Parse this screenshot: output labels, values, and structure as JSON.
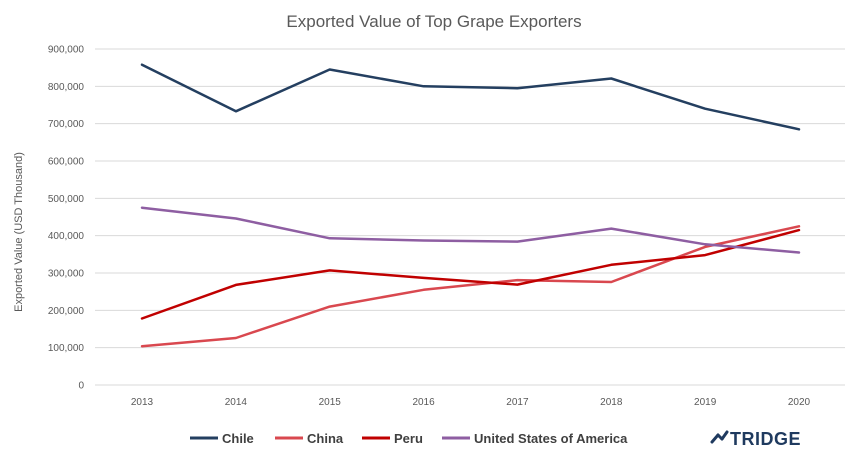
{
  "chart_data": {
    "type": "line",
    "title": "Exported Value of Top Grape Exporters",
    "ylabel": "Exported Value (USD Thousand)",
    "xlabel": "",
    "categories": [
      "2013",
      "2014",
      "2015",
      "2016",
      "2017",
      "2018",
      "2019",
      "2020"
    ],
    "ylim": [
      0,
      900000
    ],
    "yticks": [
      0,
      100000,
      200000,
      300000,
      400000,
      500000,
      600000,
      700000,
      800000,
      900000
    ],
    "ytick_labels": [
      "0",
      "100,000",
      "200,000",
      "300,000",
      "400,000",
      "500,000",
      "600,000",
      "700,000",
      "800,000",
      "900,000"
    ],
    "grid": true,
    "legend_position": "bottom",
    "series": [
      {
        "name": "Chile",
        "color": "#243f60",
        "values": [
          858000,
          733000,
          845000,
          800000,
          795000,
          821000,
          740000,
          685000
        ]
      },
      {
        "name": "China",
        "color": "#d9484f",
        "values": [
          104000,
          126000,
          210000,
          255000,
          281000,
          276000,
          370000,
          425000
        ]
      },
      {
        "name": "Peru",
        "color": "#c00000",
        "values": [
          178000,
          268000,
          307000,
          287000,
          269000,
          322000,
          348000,
          415000
        ]
      },
      {
        "name": "United States of America",
        "color": "#8e5ea2",
        "values": [
          475000,
          446000,
          393000,
          387000,
          384000,
          419000,
          377000,
          355000
        ]
      }
    ]
  },
  "brand": {
    "name": "TRIDGE",
    "color": "#1f3a5f",
    "icon": "tridge-logo-icon"
  }
}
